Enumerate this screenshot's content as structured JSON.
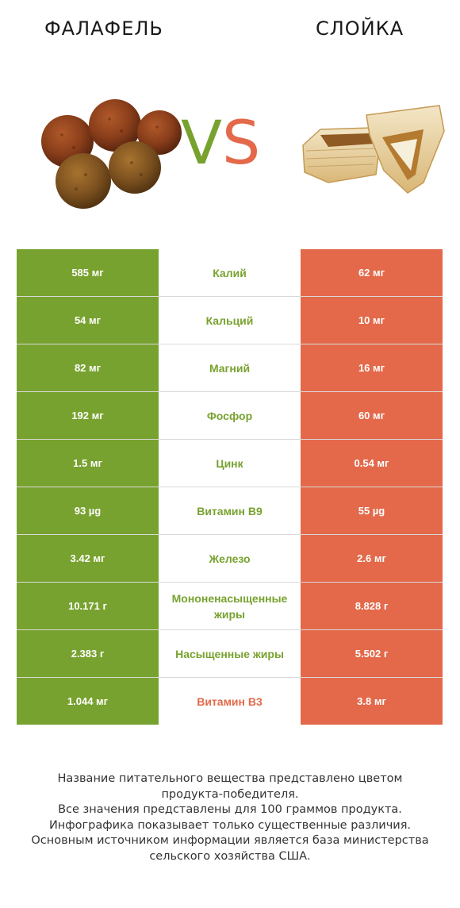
{
  "header": {
    "left_title": "ФАЛАФЕЛЬ",
    "right_title": "СЛОЙКА",
    "vs_v": "V",
    "vs_s": "S"
  },
  "colors": {
    "left_winner": "#78a22f",
    "right_winner": "#e3694a"
  },
  "rows": [
    {
      "left": "585 мг",
      "nutrient": "Калий",
      "right": "62 мг",
      "winner": "left"
    },
    {
      "left": "54 мг",
      "nutrient": "Кальций",
      "right": "10 мг",
      "winner": "left"
    },
    {
      "left": "82 мг",
      "nutrient": "Магний",
      "right": "16 мг",
      "winner": "left"
    },
    {
      "left": "192 мг",
      "nutrient": "Фосфор",
      "right": "60 мг",
      "winner": "left"
    },
    {
      "left": "1.5 мг",
      "nutrient": "Цинк",
      "right": "0.54 мг",
      "winner": "left"
    },
    {
      "left": "93 µg",
      "nutrient": "Витамин B9",
      "right": "55 µg",
      "winner": "left"
    },
    {
      "left": "3.42 мг",
      "nutrient": "Железо",
      "right": "2.6 мг",
      "winner": "left"
    },
    {
      "left": "10.171 г",
      "nutrient": "Мононенасыщенные жиры",
      "right": "8.828 г",
      "winner": "left"
    },
    {
      "left": "2.383 г",
      "nutrient": "Насыщенные жиры",
      "right": "5.502 г",
      "winner": "left"
    },
    {
      "left": "1.044 мг",
      "nutrient": "Витамин B3",
      "right": "3.8 мг",
      "winner": "right"
    }
  ],
  "footer": {
    "line1": "Название питательного вещества представлено цветом",
    "line2": "продукта-победителя.",
    "line3": "Все значения представлены для 100 граммов продукта.",
    "line4": "Инфографика показывает только существенные различия.",
    "line5": "Основным источником информации является база министерства",
    "line6": "сельского хозяйства США."
  }
}
